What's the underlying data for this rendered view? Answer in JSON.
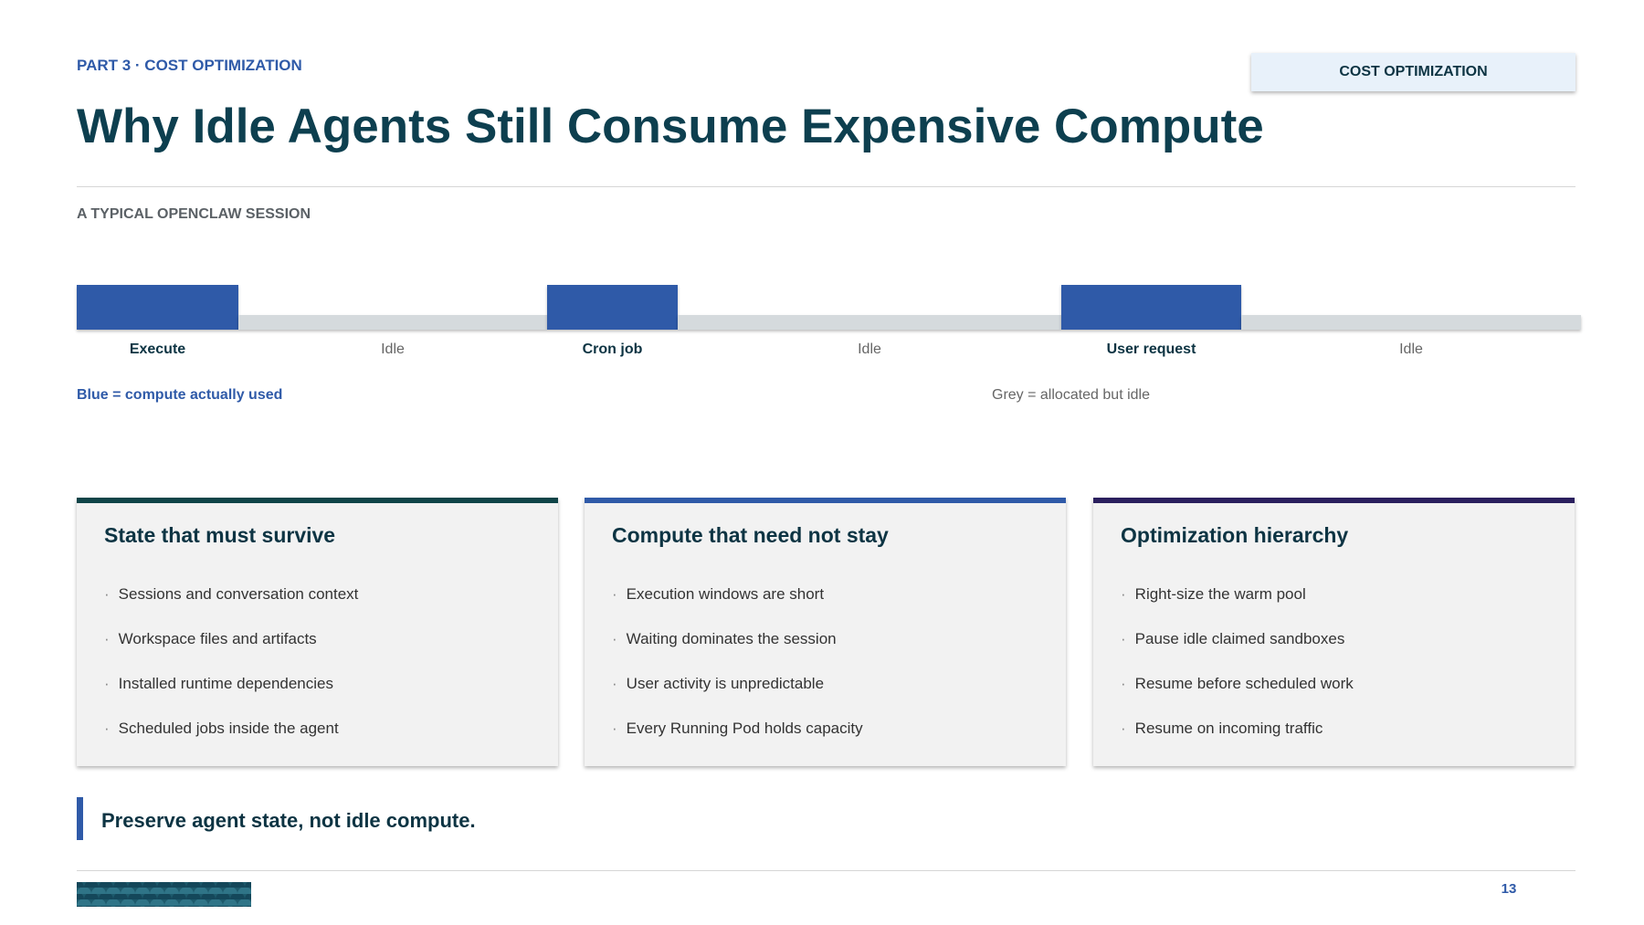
{
  "header": {
    "eyebrow": "PART 3 · COST OPTIMIZATION",
    "badge": "COST OPTIMIZATION",
    "title": "Why Idle Agents Still Consume Expensive Compute"
  },
  "timeline": {
    "label": "A TYPICAL OPENCLAW SESSION",
    "segments": [
      "Execute",
      "Idle",
      "Cron job",
      "Idle",
      "User request",
      "Idle"
    ],
    "legend": [
      "Blue = compute actually used",
      "Grey = allocated but idle"
    ]
  },
  "cards": [
    {
      "title": "State that must survive",
      "items": [
        "Sessions and conversation context",
        "Workspace files and artifacts",
        "Installed runtime dependencies",
        "Scheduled jobs inside the agent"
      ]
    },
    {
      "title": "Compute that need not stay",
      "items": [
        "Execution windows are short",
        "Waiting dominates the session",
        "User activity is unpredictable",
        "Every Running Pod holds capacity"
      ]
    },
    {
      "title": "Optimization hierarchy",
      "items": [
        "Right-size the warm pool",
        "Pause idle claimed sandboxes",
        "Resume before scheduled work",
        "Resume on incoming traffic"
      ]
    }
  ],
  "takeaway": "Preserve agent state, not idle compute.",
  "footer": {
    "page": "13"
  }
}
